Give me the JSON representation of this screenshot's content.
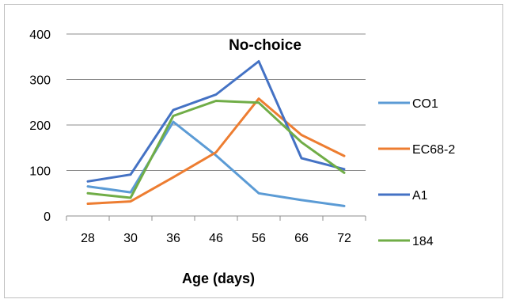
{
  "chart_data": {
    "type": "line",
    "title": "No-choice",
    "xlabel": "Age (days)",
    "ylabel": "",
    "categories": [
      "28",
      "30",
      "36",
      "46",
      "56",
      "66",
      "72"
    ],
    "ylim": [
      0,
      400
    ],
    "yticks": [
      "0",
      "100",
      "200",
      "300",
      "400"
    ],
    "grid": "horizontal",
    "legend_position": "right",
    "series": [
      {
        "name": "CO1",
        "color": "#5b9bd5",
        "values": [
          65,
          52,
          207,
          133,
          50,
          35,
          22
        ]
      },
      {
        "name": "EC68-2",
        "color": "#ed7d31",
        "values": [
          27,
          32,
          85,
          140,
          258,
          178,
          132
        ]
      },
      {
        "name": "A1",
        "color": "#4472c4",
        "values": [
          76,
          91,
          233,
          267,
          340,
          127,
          103
        ]
      },
      {
        "name": "184",
        "color": "#70ad47",
        "values": [
          50,
          40,
          220,
          253,
          249,
          162,
          95
        ]
      }
    ]
  }
}
